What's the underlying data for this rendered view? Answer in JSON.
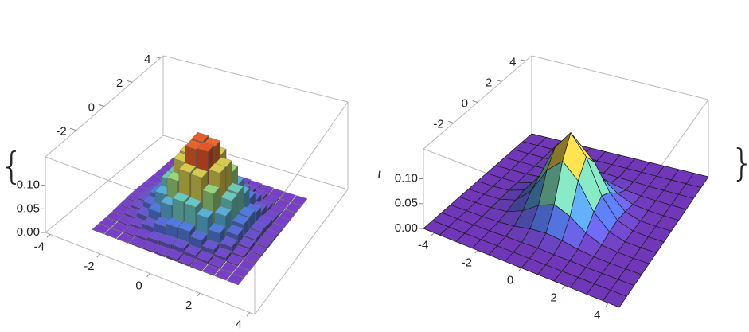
{
  "list_syntax": {
    "open": "{",
    "separator": ",",
    "close": "}"
  },
  "chart_data": [
    {
      "type": "histogram3d",
      "xbins": [
        -3,
        -2.5,
        -2,
        -1.5,
        -1,
        -0.5,
        0,
        0.5,
        1,
        1.5,
        2,
        2.5,
        3
      ],
      "ybins": [
        -3,
        -2.5,
        -2,
        -1.5,
        -1,
        -0.5,
        0,
        0.5,
        1,
        1.5,
        2,
        2.5,
        3
      ],
      "values": [
        [
          0.001,
          0.001,
          0.001,
          0.002,
          0.003,
          0.004,
          0.005,
          0.003,
          0.002,
          0.001,
          0.001,
          0.001
        ],
        [
          0.001,
          0.001,
          0.003,
          0.006,
          0.01,
          0.012,
          0.013,
          0.009,
          0.006,
          0.003,
          0.001,
          0.001
        ],
        [
          0.001,
          0.003,
          0.007,
          0.016,
          0.026,
          0.033,
          0.034,
          0.025,
          0.015,
          0.008,
          0.003,
          0.001
        ],
        [
          0.002,
          0.006,
          0.016,
          0.033,
          0.055,
          0.071,
          0.069,
          0.056,
          0.034,
          0.016,
          0.006,
          0.002
        ],
        [
          0.003,
          0.01,
          0.026,
          0.055,
          0.091,
          0.116,
          0.114,
          0.09,
          0.054,
          0.025,
          0.009,
          0.003
        ],
        [
          0.004,
          0.012,
          0.033,
          0.071,
          0.116,
          0.149,
          0.152,
          0.117,
          0.07,
          0.032,
          0.011,
          0.004
        ],
        [
          0.004,
          0.012,
          0.032,
          0.07,
          0.118,
          0.15,
          0.147,
          0.115,
          0.072,
          0.033,
          0.012,
          0.004
        ],
        [
          0.003,
          0.009,
          0.026,
          0.054,
          0.092,
          0.115,
          0.117,
          0.091,
          0.055,
          0.026,
          0.01,
          0.003
        ],
        [
          0.002,
          0.006,
          0.015,
          0.034,
          0.056,
          0.07,
          0.072,
          0.054,
          0.033,
          0.016,
          0.006,
          0.002
        ],
        [
          0.001,
          0.003,
          0.007,
          0.015,
          0.025,
          0.034,
          0.032,
          0.026,
          0.016,
          0.007,
          0.003,
          0.001
        ],
        [
          0.001,
          0.001,
          0.003,
          0.006,
          0.009,
          0.011,
          0.013,
          0.01,
          0.006,
          0.003,
          0.001,
          0.001
        ],
        [
          0.001,
          0.001,
          0.001,
          0.002,
          0.003,
          0.004,
          0.004,
          0.003,
          0.002,
          0.001,
          0.001,
          0.001
        ]
      ],
      "xlim": [
        -4.2,
        4.2
      ],
      "ylim": [
        -4.2,
        4.2
      ],
      "zlim": [
        0,
        0.16
      ],
      "xticks": [
        -4,
        -2,
        0,
        2,
        4
      ],
      "yticks": [
        -2,
        0,
        2,
        4
      ],
      "zticks": [
        {
          "value": 0,
          "label": "0.00"
        },
        {
          "value": 0.05,
          "label": "0.05"
        },
        {
          "value": 0.1,
          "label": "0.10"
        }
      ],
      "colormap": [
        "#7a3cc8",
        "#4f78e0",
        "#5cc4d4",
        "#a6d866",
        "#f2c23e",
        "#e2301f"
      ]
    },
    {
      "type": "surface3d",
      "x": [
        -4.5,
        -3.75,
        -3,
        -2.25,
        -1.5,
        -0.75,
        0,
        0.75,
        1.5,
        2.25,
        3,
        3.75,
        4.5
      ],
      "y": [
        -4.5,
        -3.75,
        -3,
        -2.25,
        -1.5,
        -0.75,
        0,
        0.75,
        1.5,
        2.25,
        3,
        3.75,
        4.5
      ],
      "z": [
        [
          0,
          0,
          0,
          0,
          0,
          0,
          0,
          0,
          0,
          0,
          0,
          0,
          0
        ],
        [
          0,
          0,
          0,
          0,
          0,
          0,
          0,
          0,
          0,
          0,
          0,
          0,
          0
        ],
        [
          0,
          0,
          0,
          0,
          0.001,
          0.001,
          0.002,
          0.001,
          0.001,
          0,
          0,
          0,
          0
        ],
        [
          0,
          0,
          0,
          0.001,
          0.004,
          0.01,
          0.013,
          0.01,
          0.004,
          0.001,
          0,
          0,
          0
        ],
        [
          0,
          0,
          0.001,
          0.004,
          0.017,
          0.039,
          0.052,
          0.039,
          0.017,
          0.004,
          0.001,
          0,
          0
        ],
        [
          0,
          0,
          0.001,
          0.01,
          0.039,
          0.091,
          0.12,
          0.091,
          0.039,
          0.01,
          0.001,
          0,
          0
        ],
        [
          0,
          0,
          0.002,
          0.013,
          0.052,
          0.12,
          0.159,
          0.12,
          0.052,
          0.013,
          0.002,
          0,
          0
        ],
        [
          0,
          0,
          0.001,
          0.01,
          0.039,
          0.091,
          0.12,
          0.091,
          0.039,
          0.01,
          0.001,
          0,
          0
        ],
        [
          0,
          0,
          0.001,
          0.004,
          0.017,
          0.039,
          0.052,
          0.039,
          0.017,
          0.004,
          0.001,
          0,
          0
        ],
        [
          0,
          0,
          0,
          0.001,
          0.004,
          0.01,
          0.013,
          0.01,
          0.004,
          0.001,
          0,
          0,
          0
        ],
        [
          0,
          0,
          0,
          0,
          0.001,
          0.001,
          0.002,
          0.001,
          0.001,
          0,
          0,
          0,
          0
        ],
        [
          0,
          0,
          0,
          0,
          0,
          0,
          0,
          0,
          0,
          0,
          0,
          0,
          0
        ],
        [
          0,
          0,
          0,
          0,
          0,
          0,
          0,
          0,
          0,
          0,
          0,
          0,
          0
        ]
      ],
      "xlim": [
        -4.5,
        4.5
      ],
      "ylim": [
        -4.5,
        4.5
      ],
      "zlim": [
        0,
        0.16
      ],
      "xticks": [
        -4,
        -2,
        0,
        2,
        4
      ],
      "yticks": [
        -2,
        0,
        2,
        4
      ],
      "zticks": [
        {
          "value": 0,
          "label": "0.00"
        },
        {
          "value": 0.05,
          "label": "0.05"
        },
        {
          "value": 0.1,
          "label": "0.10"
        }
      ],
      "colormap": [
        "#7a3cc8",
        "#4f78e0",
        "#5cc4d4",
        "#a6d866",
        "#f2c23e",
        "#e2301f"
      ],
      "mesh_color": "#1a1a1a"
    }
  ]
}
